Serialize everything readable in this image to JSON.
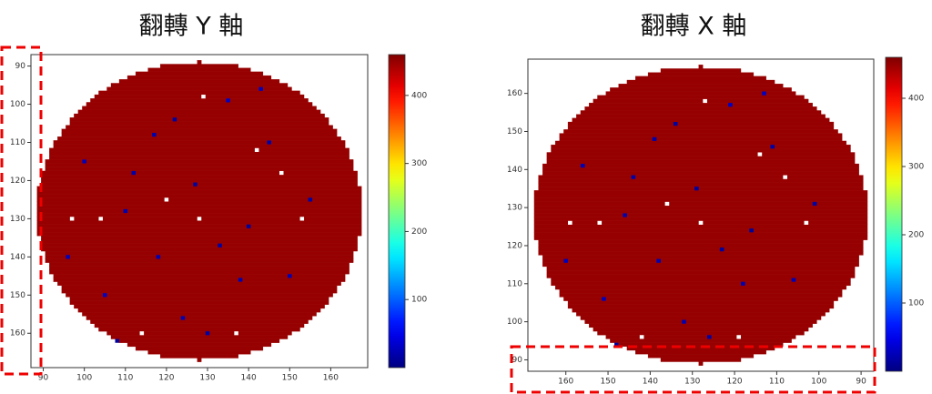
{
  "chart_data": [
    {
      "type": "heatmap",
      "title": "翻轉 Y 軸",
      "xlim": [
        87,
        169
      ],
      "ylim": [
        169,
        87
      ],
      "xticks": [
        90,
        100,
        110,
        120,
        130,
        140,
        150,
        160
      ],
      "yticks": [
        90,
        100,
        110,
        120,
        130,
        140,
        150,
        160
      ],
      "colormap": "jet",
      "clim": [
        0,
        460
      ],
      "cticks": [
        100,
        200,
        300,
        400
      ],
      "wafer": {
        "center": [
          128,
          128
        ],
        "radius": 39,
        "base_value": 450,
        "cells": [
          [
            110,
            128,
            20
          ],
          [
            122,
            104,
            15
          ],
          [
            135,
            99,
            30
          ],
          [
            100,
            115,
            25
          ],
          [
            145,
            110,
            18
          ],
          [
            118,
            140,
            22
          ],
          [
            140,
            132,
            12
          ],
          [
            105,
            150,
            28
          ],
          [
            130,
            160,
            16
          ],
          [
            150,
            145,
            24
          ],
          [
            112,
            118,
            19
          ],
          [
            127,
            121,
            14
          ],
          [
            138,
            146,
            21
          ],
          [
            96,
            140,
            26
          ],
          [
            155,
            125,
            17
          ],
          [
            124,
            156,
            23
          ],
          [
            108,
            162,
            13
          ],
          [
            143,
            96,
            29
          ],
          [
            117,
            108,
            20
          ],
          [
            133,
            137,
            15
          ],
          [
            97,
            130,
            null
          ],
          [
            104,
            130,
            null
          ],
          [
            129,
            98,
            null
          ],
          [
            148,
            118,
            null
          ],
          [
            120,
            125,
            null
          ],
          [
            142,
            112,
            null
          ],
          [
            114,
            160,
            null
          ],
          [
            128,
            130,
            null
          ],
          [
            153,
            130,
            null
          ],
          [
            137,
            160,
            null
          ]
        ]
      }
    },
    {
      "type": "heatmap",
      "title": "翻轉 X 軸",
      "xlim": [
        169,
        87
      ],
      "ylim": [
        87,
        169
      ],
      "xticks": [
        90,
        100,
        110,
        120,
        130,
        140,
        150,
        160
      ],
      "yticks": [
        90,
        100,
        110,
        120,
        130,
        140,
        150,
        160
      ],
      "colormap": "jet",
      "clim": [
        0,
        460
      ],
      "cticks": [
        100,
        200,
        300,
        400
      ],
      "wafer": {
        "center": [
          128,
          128
        ],
        "radius": 39,
        "base_value": 450,
        "cells": [
          [
            146,
            128,
            20
          ],
          [
            134,
            152,
            15
          ],
          [
            121,
            157,
            30
          ],
          [
            156,
            141,
            25
          ],
          [
            111,
            146,
            18
          ],
          [
            138,
            116,
            22
          ],
          [
            116,
            124,
            12
          ],
          [
            151,
            106,
            28
          ],
          [
            126,
            96,
            16
          ],
          [
            106,
            111,
            24
          ],
          [
            144,
            138,
            19
          ],
          [
            129,
            135,
            14
          ],
          [
            118,
            110,
            21
          ],
          [
            160,
            116,
            26
          ],
          [
            101,
            131,
            17
          ],
          [
            132,
            100,
            23
          ],
          [
            148,
            94,
            13
          ],
          [
            113,
            160,
            29
          ],
          [
            139,
            148,
            20
          ],
          [
            123,
            119,
            15
          ],
          [
            159,
            126,
            null
          ],
          [
            152,
            126,
            null
          ],
          [
            127,
            158,
            null
          ],
          [
            108,
            138,
            null
          ],
          [
            136,
            131,
            null
          ],
          [
            114,
            144,
            null
          ],
          [
            142,
            96,
            null
          ],
          [
            128,
            126,
            null
          ],
          [
            103,
            126,
            null
          ],
          [
            119,
            96,
            null
          ]
        ]
      }
    }
  ]
}
